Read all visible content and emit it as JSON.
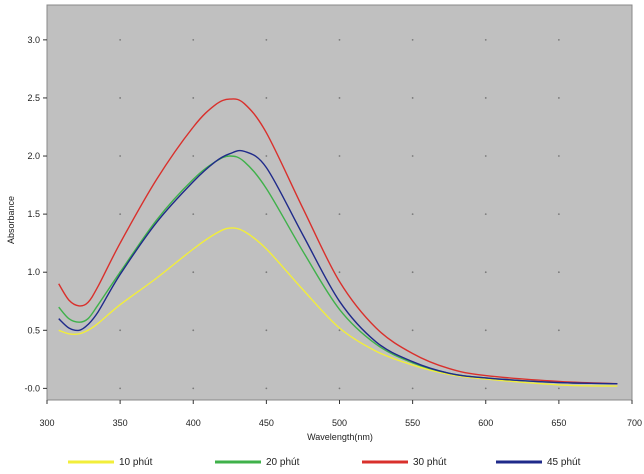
{
  "chart_data": {
    "type": "line",
    "xlabel": "Wavelength(nm)",
    "ylabel": "Absorbance",
    "xlim": [
      300,
      700
    ],
    "ylim": [
      -0.1,
      3.3
    ],
    "xticks": [
      300,
      350,
      400,
      450,
      500,
      550,
      600,
      650,
      700
    ],
    "xtick_labels": [
      "300",
      "350",
      "400",
      "450",
      "500",
      "550",
      "600",
      "650",
      "700"
    ],
    "yticks": [
      0.0,
      0.5,
      1.0,
      1.5,
      2.0,
      2.5,
      3.0
    ],
    "ytick_labels": [
      "-0.0",
      "0.5",
      "1.0",
      "1.5",
      "2.0",
      "2.5",
      "3.0"
    ],
    "grid": true,
    "legend_position": "bottom",
    "x": [
      308,
      315,
      322,
      328,
      335,
      350,
      375,
      400,
      415,
      425,
      435,
      450,
      475,
      500,
      525,
      550,
      575,
      600,
      650,
      690
    ],
    "series": [
      {
        "name": "10 phút",
        "color": "#f2ee3a",
        "values": [
          0.5,
          0.47,
          0.47,
          0.5,
          0.56,
          0.72,
          0.95,
          1.2,
          1.33,
          1.38,
          1.35,
          1.2,
          0.85,
          0.52,
          0.32,
          0.2,
          0.12,
          0.08,
          0.03,
          0.02
        ]
      },
      {
        "name": "20 phút",
        "color": "#3fb14a",
        "values": [
          0.7,
          0.6,
          0.57,
          0.6,
          0.72,
          1.0,
          1.45,
          1.8,
          1.95,
          2.0,
          1.95,
          1.72,
          1.18,
          0.68,
          0.38,
          0.22,
          0.13,
          0.09,
          0.05,
          0.04
        ]
      },
      {
        "name": "30 phút",
        "color": "#d9302c",
        "values": [
          0.9,
          0.76,
          0.71,
          0.74,
          0.88,
          1.25,
          1.8,
          2.25,
          2.44,
          2.49,
          2.45,
          2.2,
          1.55,
          0.92,
          0.52,
          0.3,
          0.17,
          0.11,
          0.06,
          0.04
        ]
      },
      {
        "name": "45 phút",
        "color": "#1f2a8a",
        "values": [
          0.6,
          0.52,
          0.5,
          0.55,
          0.66,
          0.98,
          1.43,
          1.78,
          1.95,
          2.02,
          2.04,
          1.9,
          1.32,
          0.75,
          0.4,
          0.23,
          0.13,
          0.09,
          0.05,
          0.04
        ]
      }
    ]
  }
}
